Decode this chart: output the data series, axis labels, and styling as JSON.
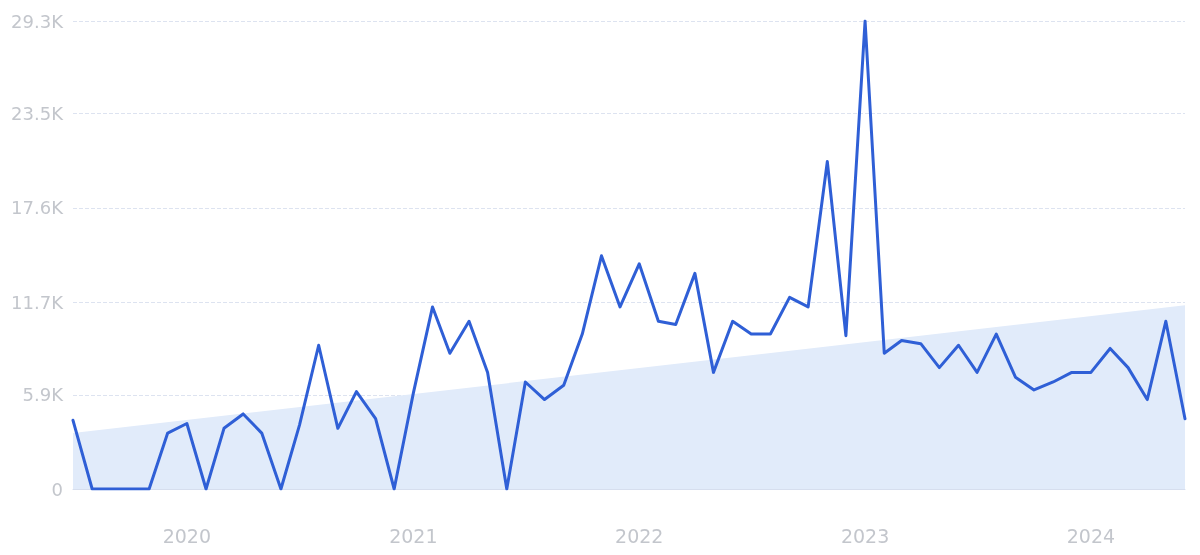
{
  "chart_data": {
    "type": "line",
    "x": [
      "2019-07",
      "2019-08",
      "2019-09",
      "2019-10",
      "2019-11",
      "2019-12",
      "2020-01",
      "2020-02",
      "2020-03",
      "2020-04",
      "2020-05",
      "2020-06",
      "2020-07",
      "2020-08",
      "2020-09",
      "2020-10",
      "2020-11",
      "2020-12",
      "2021-01",
      "2021-02",
      "2021-03",
      "2021-04",
      "2021-05",
      "2021-06",
      "2021-07",
      "2021-08",
      "2021-09",
      "2021-10",
      "2021-11",
      "2021-12",
      "2022-01",
      "2022-02",
      "2022-03",
      "2022-04",
      "2022-05",
      "2022-06",
      "2022-07",
      "2022-08",
      "2022-09",
      "2022-10",
      "2022-11",
      "2022-12",
      "2023-01",
      "2023-02",
      "2023-03",
      "2023-04",
      "2023-05",
      "2023-06",
      "2023-07",
      "2023-08",
      "2023-09",
      "2023-10",
      "2023-11",
      "2023-12",
      "2024-01",
      "2024-02",
      "2024-03",
      "2024-04",
      "2024-05",
      "2024-06"
    ],
    "series": [
      {
        "type": "area",
        "color": "#e1ebfa",
        "x": [
          "2019-07",
          "2024-06"
        ],
        "values": [
          3500,
          11500
        ]
      },
      {
        "color": "#2f5fd6",
        "values": [
          4300,
          0,
          0,
          0,
          0,
          3500,
          4100,
          0,
          3800,
          4700,
          3500,
          0,
          4000,
          9000,
          3800,
          6100,
          4400,
          0,
          6000,
          11400,
          8500,
          10500,
          7300,
          0,
          6700,
          5600,
          6500,
          9700,
          14600,
          11400,
          14100,
          10500,
          10300,
          13500,
          7300,
          10500,
          9700,
          9700,
          12000,
          11400,
          20500,
          9600,
          29300,
          8500,
          9300,
          9100,
          7600,
          9000,
          7300,
          9700,
          7000,
          6200,
          6700,
          7300,
          7300,
          8800,
          7600,
          5600,
          10500,
          4400
        ]
      }
    ],
    "xlim": [
      "2019-07",
      "2024-06"
    ],
    "xticks": [
      "2020",
      "2021",
      "2022",
      "2023",
      "2024"
    ],
    "ylim": [
      0,
      29300
    ],
    "yticks": [
      0,
      {
        "value": 5900,
        "label": "5.9K"
      },
      {
        "value": 11700,
        "label": "11.7K"
      },
      {
        "value": 17600,
        "label": "17.6K"
      },
      {
        "value": 23500,
        "label": "23.5K"
      },
      {
        "value": 29300,
        "label": "29.3K"
      }
    ],
    "grid": "y",
    "marker": "none",
    "line_style": "solid"
  }
}
